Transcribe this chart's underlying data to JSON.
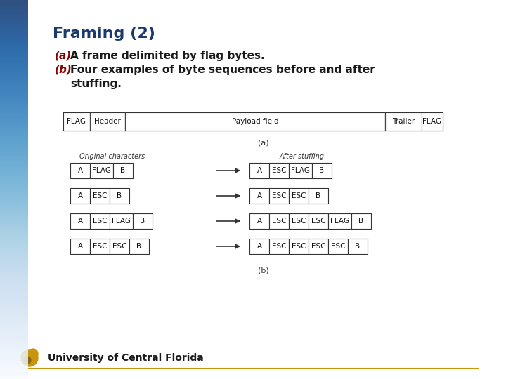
{
  "title": "Framing (2)",
  "title_color": "#1a3a6b",
  "subtitle_a_label": "(a)",
  "subtitle_a_label_color": "#8b0000",
  "subtitle_a_text": " A frame delimited by flag bytes.",
  "subtitle_b_label": "(b)",
  "subtitle_b_label_color": "#8b0000",
  "subtitle_b_text": " Four examples of byte sequences before and after\n     stuffing.",
  "text_color": "#1a1a1a",
  "bg_color": "#ffffff",
  "left_bar_color": "#3a6ea5",
  "footer_text": "University of Central Florida",
  "footer_color": "#1a1a1a",
  "box_color": "#ffffff",
  "box_edge_color": "#333333",
  "fig_bg": "#f0f4f8"
}
